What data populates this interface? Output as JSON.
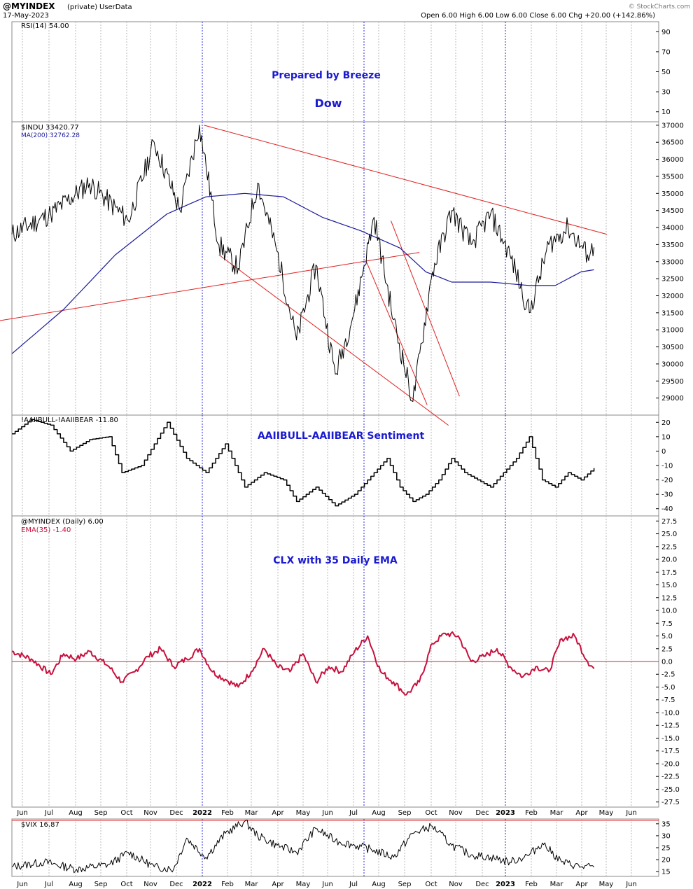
{
  "header": {
    "symbol": "@MYINDEX",
    "privacy": "(private)",
    "source": "UserData",
    "date": "17-May-2023",
    "ohlc": "Open 6.00  High 6.00  Low 6.00  Close 6.00  Chg +20.00 (+142.86%)",
    "watermark": "© StockCharts.com"
  },
  "colors": {
    "price": "#000000",
    "ma": "#1a1a9a",
    "trend": "#e02020",
    "ema": "#c8103c",
    "annotation": "#1a1ad0",
    "vline_year": "#2a2adf",
    "grid": "#b8b8b8"
  },
  "chart_data": [
    {
      "type": "line",
      "panel": "rsi",
      "legend": "RSI(14) 54.00",
      "yticks": [
        "90",
        "70",
        "50",
        "30",
        "10"
      ],
      "ylim": [
        0,
        100
      ],
      "annotations": [
        "Prepared by Breeze",
        "Dow"
      ]
    },
    {
      "type": "line",
      "panel": "price",
      "legend": "$INDU 33420.77",
      "ma_legend": "MA(200) 32762.28",
      "ylim": [
        28500,
        37100
      ],
      "yticks": [
        "37000",
        "36500",
        "36000",
        "35500",
        "35000",
        "34500",
        "34000",
        "33500",
        "33000",
        "32500",
        "32000",
        "31500",
        "31000",
        "30500",
        "30000",
        "29500",
        "29000"
      ],
      "series": [
        {
          "name": "$INDU 33420.77",
          "x": [
            0,
            0.06,
            0.12,
            0.18,
            0.22,
            0.26,
            0.29,
            0.32,
            0.35,
            0.38,
            0.41,
            0.44,
            0.47,
            0.5,
            0.53,
            0.56,
            0.59,
            0.62,
            0.65,
            0.68,
            0.71,
            0.74,
            0.77,
            0.8,
            0.83,
            0.86,
            0.89,
            0.9
          ],
          "values": [
            33800,
            34400,
            35300,
            34200,
            36500,
            34500,
            37000,
            33500,
            32800,
            35300,
            33300,
            30700,
            32900,
            29700,
            31600,
            34300,
            31300,
            28900,
            32700,
            34500,
            33500,
            34400,
            33200,
            31500,
            33500,
            34000,
            33200,
            33420
          ]
        },
        {
          "name": "MA(200) 32762.28",
          "x": [
            0,
            0.08,
            0.16,
            0.24,
            0.3,
            0.36,
            0.42,
            0.48,
            0.54,
            0.6,
            0.64,
            0.68,
            0.74,
            0.8,
            0.84,
            0.88,
            0.9
          ],
          "values": [
            30300,
            31600,
            33200,
            34400,
            34900,
            35000,
            34900,
            34300,
            33900,
            33400,
            32700,
            32400,
            32400,
            32300,
            32300,
            32700,
            32760
          ]
        }
      ]
    },
    {
      "type": "line",
      "panel": "sentiment",
      "legend": "!AAIIBULL-!AAIIBEAR -11.80",
      "yticks": [
        "20",
        "10",
        "0",
        "-10",
        "-20",
        "-30",
        "-40"
      ],
      "ylim": [
        -45,
        25
      ],
      "annotations": [
        "AAIIBULL-AAIIBEAR Sentiment"
      ],
      "series": [
        {
          "name": "!AAIIBULL-!AAIIBEAR -11.80",
          "x": [
            0,
            0.03,
            0.06,
            0.09,
            0.12,
            0.15,
            0.17,
            0.2,
            0.22,
            0.24,
            0.27,
            0.3,
            0.33,
            0.36,
            0.39,
            0.42,
            0.44,
            0.47,
            0.5,
            0.53,
            0.56,
            0.58,
            0.6,
            0.62,
            0.64,
            0.66,
            0.68,
            0.7,
            0.72,
            0.74,
            0.76,
            0.78,
            0.8,
            0.82,
            0.84,
            0.86,
            0.88,
            0.9
          ],
          "values": [
            12,
            22,
            18,
            0,
            8,
            10,
            -15,
            -10,
            5,
            20,
            -5,
            -15,
            5,
            -25,
            -15,
            -20,
            -35,
            -25,
            -38,
            -30,
            -15,
            -5,
            -25,
            -35,
            -30,
            -20,
            -5,
            -15,
            -20,
            -25,
            -15,
            -5,
            10,
            -20,
            -25,
            -15,
            -20,
            -11.8
          ]
        }
      ]
    },
    {
      "type": "line",
      "panel": "clx",
      "legend": "@MYINDEX (Daily) 6.00",
      "ema_legend": "EMA(35) -1.40",
      "yticks": [
        "27.5",
        "25.0",
        "22.5",
        "20.0",
        "17.5",
        "15.0",
        "12.5",
        "10.0",
        "7.5",
        "5.0",
        "2.5",
        "0.0",
        "-2.5",
        "-5.0",
        "-7.5",
        "-10.0",
        "-12.5",
        "-15.0",
        "-17.5",
        "-20.0",
        "-22.5",
        "-25.0",
        "-27.5"
      ],
      "ylim": [
        -28.5,
        28.5
      ],
      "annotations": [
        "CLX with 35 Daily EMA"
      ],
      "series": [
        {
          "name": "EMA(35) -1.40",
          "x": [
            0,
            0.03,
            0.06,
            0.08,
            0.1,
            0.12,
            0.15,
            0.17,
            0.19,
            0.21,
            0.23,
            0.25,
            0.27,
            0.29,
            0.31,
            0.33,
            0.35,
            0.37,
            0.39,
            0.41,
            0.43,
            0.45,
            0.47,
            0.49,
            0.51,
            0.53,
            0.55,
            0.57,
            0.59,
            0.61,
            0.63,
            0.65,
            0.67,
            0.69,
            0.71,
            0.73,
            0.75,
            0.77,
            0.79,
            0.81,
            0.83,
            0.85,
            0.87,
            0.89,
            0.9
          ],
          "values": [
            2,
            0.5,
            -2.5,
            1.5,
            0.5,
            2,
            -1,
            -4,
            -2,
            1,
            2.5,
            -1,
            0.5,
            2.5,
            -2,
            -3.5,
            -5,
            -2,
            2.5,
            -1,
            -2,
            1.5,
            -4,
            -1,
            -2,
            2,
            5,
            -2,
            -4,
            -6.5,
            -4,
            3.5,
            5.5,
            5,
            0,
            1,
            2.5,
            -1,
            -3,
            -1,
            -2,
            4.5,
            5,
            0,
            -1.4
          ]
        }
      ]
    },
    {
      "type": "line",
      "panel": "vix",
      "legend": "$VIX 16.87",
      "yticks": [
        "35",
        "30",
        "25",
        "20",
        "15"
      ],
      "ylim": [
        13,
        37
      ],
      "series": [
        {
          "name": "$VIX 16.87",
          "x": [
            0,
            0.05,
            0.1,
            0.15,
            0.18,
            0.22,
            0.25,
            0.27,
            0.3,
            0.33,
            0.36,
            0.38,
            0.41,
            0.44,
            0.47,
            0.5,
            0.53,
            0.56,
            0.59,
            0.62,
            0.65,
            0.68,
            0.71,
            0.74,
            0.77,
            0.8,
            0.82,
            0.85,
            0.88,
            0.9
          ],
          "values": [
            17,
            19,
            16,
            18,
            23,
            17,
            16,
            29,
            21,
            31,
            36,
            30,
            26,
            23,
            33,
            28,
            26,
            24,
            21,
            31,
            34,
            26,
            22,
            21,
            19,
            22,
            27,
            19,
            17,
            16.87
          ]
        }
      ]
    }
  ],
  "xaxis": {
    "labels": [
      "Jun",
      "Jul",
      "Aug",
      "Sep",
      "Oct",
      "Nov",
      "Dec",
      "2022",
      "Feb",
      "Mar",
      "Apr",
      "May",
      "Jun",
      "Jul",
      "Aug",
      "Sep",
      "Oct",
      "Nov",
      "Dec",
      "2023",
      "Feb",
      "Mar",
      "Apr",
      "May",
      "Jun"
    ]
  }
}
